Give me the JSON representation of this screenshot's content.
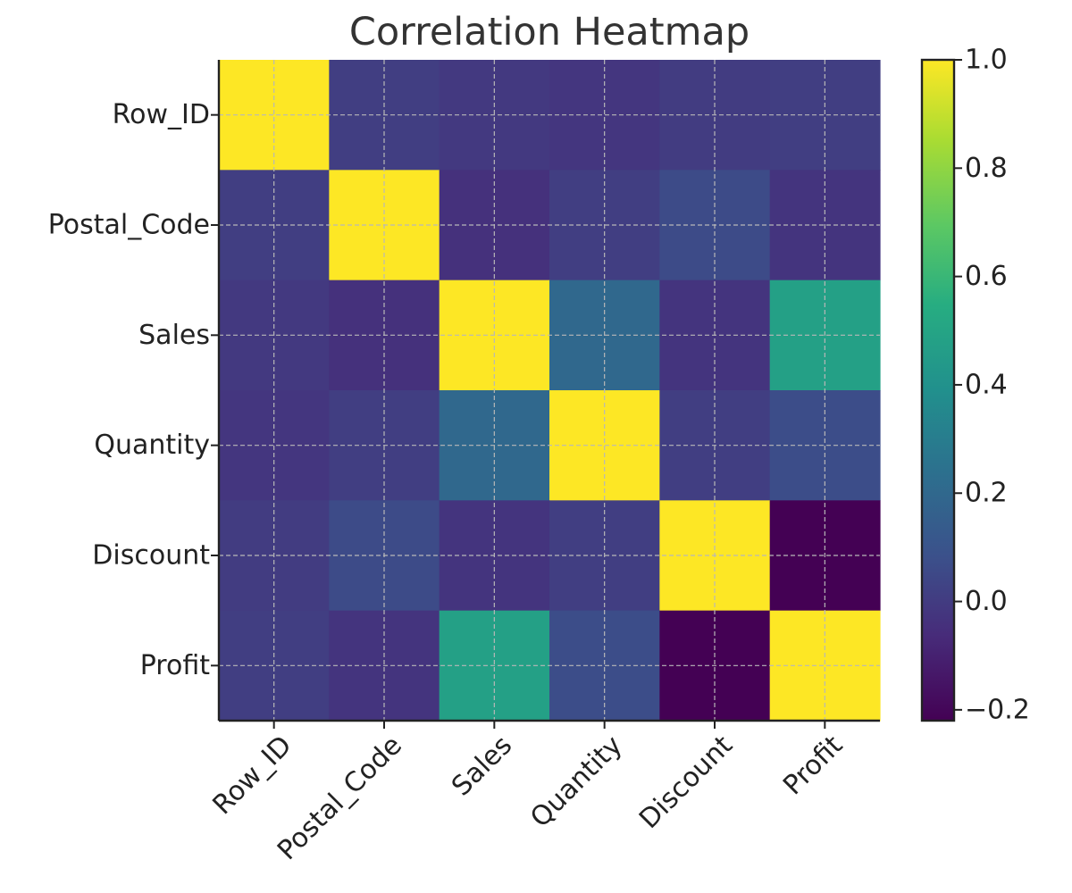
{
  "chart_data": {
    "type": "heatmap",
    "title": "Correlation Heatmap",
    "xlabel": "",
    "ylabel": "",
    "x_categories": [
      "Row_ID",
      "Postal_Code",
      "Sales",
      "Quantity",
      "Discount",
      "Profit"
    ],
    "y_categories": [
      "Row_ID",
      "Postal_Code",
      "Sales",
      "Quantity",
      "Discount",
      "Profit"
    ],
    "values": [
      [
        1.0,
        0.01,
        -0.01,
        -0.02,
        -0.0,
        0.01
      ],
      [
        0.01,
        1.0,
        -0.04,
        0.01,
        0.06,
        -0.03
      ],
      [
        -0.01,
        -0.04,
        1.0,
        0.2,
        -0.03,
        0.48
      ],
      [
        -0.02,
        0.01,
        0.2,
        1.0,
        0.01,
        0.07
      ],
      [
        -0.0,
        0.06,
        -0.03,
        0.01,
        1.0,
        -0.22
      ],
      [
        0.01,
        -0.03,
        0.48,
        0.07,
        -0.22,
        1.0
      ]
    ],
    "colorscale": "viridis",
    "vmin": -0.22,
    "vmax": 1.0,
    "colorbar_ticks": [
      1.0,
      0.8,
      0.6,
      0.4,
      0.2,
      0.0,
      -0.2
    ],
    "colorbar_tick_labels": [
      "1.0",
      "0.8",
      "0.6",
      "0.4",
      "0.2",
      "0.0",
      "−0.2"
    ],
    "grid": true,
    "colorbar_position": "right"
  }
}
